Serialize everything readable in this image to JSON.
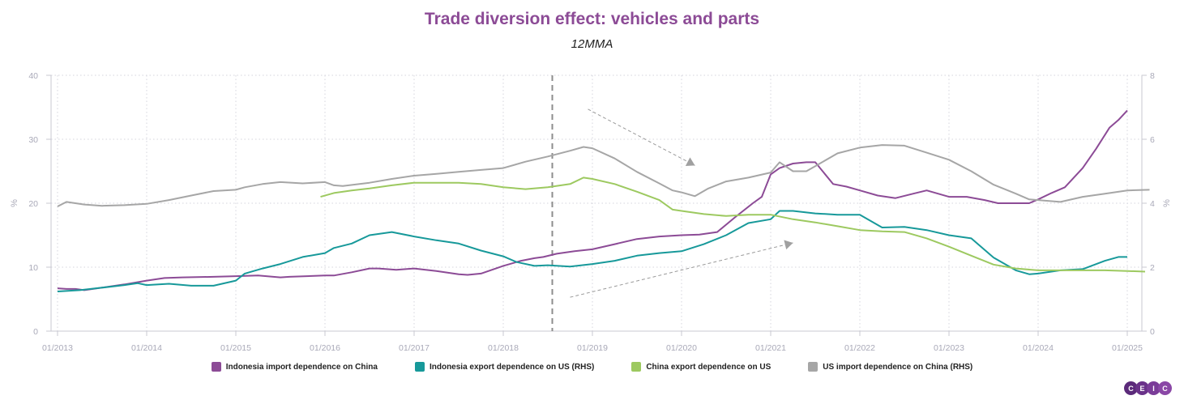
{
  "chart_data": {
    "type": "line",
    "title": "Trade diversion effect: vehicles and parts",
    "subtitle": "12MMA",
    "ylabel_left": "%",
    "ylabel_right": "%",
    "ylim_left": [
      0,
      40
    ],
    "ylim_right": [
      0,
      8
    ],
    "yticks_left": [
      "0",
      "10",
      "20",
      "30",
      "40"
    ],
    "yticks_right": [
      "0",
      "2",
      "4",
      "6",
      "8"
    ],
    "xticks": [
      "01/2013",
      "01/2014",
      "01/2015",
      "01/2016",
      "01/2017",
      "01/2018",
      "01/2019",
      "01/2020",
      "01/2021",
      "01/2022",
      "01/2023",
      "01/2024",
      "01/2025"
    ],
    "xlim": [
      2012.92,
      2025.3
    ],
    "grid": true,
    "legend_position": "bottom",
    "vertical_marker": {
      "x": 2018.55,
      "style": "dashed"
    },
    "annotations": [
      {
        "type": "arrow",
        "from": [
          2018.95,
          34.7
        ],
        "to": [
          2020.15,
          25.9
        ],
        "axis": "left",
        "direction": "down"
      },
      {
        "type": "arrow",
        "from": [
          2018.75,
          5.3
        ],
        "to": [
          2021.25,
          13.8
        ],
        "axis": "left",
        "direction": "up"
      }
    ],
    "series": [
      {
        "name": "Indonesia import dependence on China",
        "axis": "left",
        "color": "#8c4b96",
        "x": [
          2013.0,
          2013.1,
          2013.2,
          2013.3,
          2013.5,
          2013.75,
          2014.0,
          2014.2,
          2014.4,
          2014.75,
          2015.0,
          2015.25,
          2015.5,
          2015.6,
          2016.0,
          2016.1,
          2016.3,
          2016.5,
          2016.6,
          2016.8,
          2017.0,
          2017.25,
          2017.5,
          2017.6,
          2017.75,
          2018.0,
          2018.2,
          2018.35,
          2018.45,
          2018.6,
          2018.8,
          2019.0,
          2019.25,
          2019.5,
          2019.75,
          2020.0,
          2020.2,
          2020.4,
          2020.6,
          2020.8,
          2020.9,
          2021.0,
          2021.1,
          2021.25,
          2021.4,
          2021.5,
          2021.7,
          2021.85,
          2022.0,
          2022.2,
          2022.4,
          2022.6,
          2022.75,
          2023.0,
          2023.2,
          2023.4,
          2023.55,
          2023.75,
          2023.9,
          2024.0,
          2024.15,
          2024.3,
          2024.5,
          2024.65,
          2024.8,
          2024.9,
          2025.0
        ],
        "values": [
          6.7,
          6.6,
          6.6,
          6.4,
          6.8,
          7.3,
          7.9,
          8.3,
          8.4,
          8.5,
          8.6,
          8.7,
          8.4,
          8.5,
          8.7,
          8.7,
          9.2,
          9.8,
          9.8,
          9.6,
          9.8,
          9.4,
          8.9,
          8.8,
          9.0,
          10.2,
          11.0,
          11.4,
          11.6,
          12.1,
          12.5,
          12.8,
          13.6,
          14.4,
          14.8,
          15.0,
          15.1,
          15.5,
          17.8,
          20.0,
          21.0,
          24.5,
          25.5,
          26.2,
          26.4,
          26.4,
          23.0,
          22.6,
          22.0,
          21.2,
          20.8,
          21.5,
          22.0,
          21.0,
          21.0,
          20.5,
          20.0,
          20.0,
          20.0,
          20.6,
          21.6,
          22.5,
          25.5,
          28.5,
          31.8,
          33.0,
          34.5
        ]
      },
      {
        "name": "Indonesia export dependence on US (RHS)",
        "axis": "right",
        "color": "#17999a",
        "x": [
          2013.0,
          2013.25,
          2013.5,
          2013.75,
          2013.9,
          2014.0,
          2014.25,
          2014.5,
          2014.75,
          2015.0,
          2015.1,
          2015.3,
          2015.5,
          2015.75,
          2016.0,
          2016.1,
          2016.3,
          2016.5,
          2016.75,
          2017.0,
          2017.25,
          2017.5,
          2017.75,
          2018.0,
          2018.15,
          2018.35,
          2018.5,
          2018.75,
          2019.0,
          2019.25,
          2019.5,
          2019.75,
          2020.0,
          2020.25,
          2020.5,
          2020.75,
          2021.0,
          2021.1,
          2021.25,
          2021.5,
          2021.75,
          2022.0,
          2022.25,
          2022.5,
          2022.75,
          2023.0,
          2023.25,
          2023.5,
          2023.75,
          2023.9,
          2024.0,
          2024.25,
          2024.5,
          2024.75,
          2024.9,
          2025.0
        ],
        "values": [
          1.24,
          1.28,
          1.36,
          1.44,
          1.5,
          1.44,
          1.48,
          1.42,
          1.42,
          1.58,
          1.8,
          1.96,
          2.1,
          2.32,
          2.44,
          2.6,
          2.74,
          3.0,
          3.1,
          2.96,
          2.84,
          2.74,
          2.52,
          2.34,
          2.16,
          2.04,
          2.06,
          2.02,
          2.1,
          2.2,
          2.36,
          2.44,
          2.5,
          2.72,
          3.0,
          3.38,
          3.5,
          3.76,
          3.76,
          3.68,
          3.64,
          3.64,
          3.24,
          3.26,
          3.16,
          3.0,
          2.9,
          2.3,
          1.9,
          1.78,
          1.8,
          1.9,
          1.94,
          2.2,
          2.32,
          2.32
        ]
      },
      {
        "name": "China export dependence on US",
        "axis": "left",
        "color": "#9dc960",
        "x": [
          2015.95,
          2016.1,
          2016.3,
          2016.5,
          2016.75,
          2017.0,
          2017.25,
          2017.5,
          2017.75,
          2018.0,
          2018.25,
          2018.5,
          2018.75,
          2018.9,
          2019.0,
          2019.25,
          2019.5,
          2019.75,
          2019.9,
          2020.0,
          2020.25,
          2020.5,
          2020.75,
          2021.0,
          2021.25,
          2021.5,
          2021.75,
          2022.0,
          2022.25,
          2022.5,
          2022.75,
          2023.0,
          2023.25,
          2023.5,
          2023.75,
          2024.0,
          2024.25,
          2024.5,
          2024.75,
          2025.0,
          2025.2
        ],
        "values": [
          21.0,
          21.6,
          22.0,
          22.3,
          22.8,
          23.2,
          23.2,
          23.2,
          23.0,
          22.5,
          22.2,
          22.5,
          23.0,
          24.0,
          23.8,
          23.0,
          21.8,
          20.5,
          19.0,
          18.8,
          18.3,
          18.0,
          18.2,
          18.2,
          17.5,
          17.0,
          16.4,
          15.8,
          15.6,
          15.5,
          14.5,
          13.2,
          11.8,
          10.4,
          9.8,
          9.5,
          9.5,
          9.5,
          9.5,
          9.4,
          9.3
        ]
      },
      {
        "name": "US import dependence on China (RHS)",
        "axis": "right",
        "color": "#a6a6a6",
        "x": [
          2013.0,
          2013.1,
          2013.3,
          2013.5,
          2013.75,
          2014.0,
          2014.25,
          2014.5,
          2014.75,
          2015.0,
          2015.1,
          2015.3,
          2015.5,
          2015.75,
          2016.0,
          2016.1,
          2016.2,
          2016.5,
          2016.75,
          2017.0,
          2017.25,
          2017.5,
          2017.75,
          2018.0,
          2018.25,
          2018.5,
          2018.75,
          2018.9,
          2019.0,
          2019.25,
          2019.5,
          2019.75,
          2019.9,
          2020.0,
          2020.15,
          2020.3,
          2020.5,
          2020.75,
          2021.0,
          2021.1,
          2021.25,
          2021.4,
          2021.5,
          2021.75,
          2022.0,
          2022.25,
          2022.5,
          2022.75,
          2023.0,
          2023.25,
          2023.5,
          2023.75,
          2023.9,
          2024.0,
          2024.25,
          2024.5,
          2024.75,
          2025.0,
          2025.25
        ],
        "values": [
          3.9,
          4.04,
          3.96,
          3.92,
          3.94,
          3.98,
          4.1,
          4.24,
          4.38,
          4.42,
          4.5,
          4.6,
          4.66,
          4.62,
          4.66,
          4.56,
          4.54,
          4.64,
          4.76,
          4.86,
          4.92,
          4.98,
          5.04,
          5.1,
          5.3,
          5.46,
          5.64,
          5.76,
          5.72,
          5.4,
          4.98,
          4.62,
          4.4,
          4.34,
          4.22,
          4.46,
          4.68,
          4.8,
          4.96,
          5.28,
          5.0,
          5.0,
          5.16,
          5.56,
          5.74,
          5.82,
          5.8,
          5.58,
          5.36,
          5.0,
          4.58,
          4.3,
          4.12,
          4.1,
          4.04,
          4.2,
          4.3,
          4.4,
          4.42
        ]
      }
    ]
  },
  "legend": {
    "items": [
      {
        "label": "Indonesia import dependence on China",
        "color": "#8c4b96"
      },
      {
        "label": "Indonesia export dependence on US (RHS)",
        "color": "#17999a"
      },
      {
        "label": "China export dependence on US",
        "color": "#9dc960"
      },
      {
        "label": "US import dependence on China (RHS)",
        "color": "#a6a6a6"
      }
    ]
  },
  "logo": {
    "letters": [
      "C",
      "E",
      "I",
      "C"
    ],
    "colors": [
      "#5b2a7a",
      "#6a3289",
      "#7a3c98",
      "#8a47a6"
    ]
  }
}
